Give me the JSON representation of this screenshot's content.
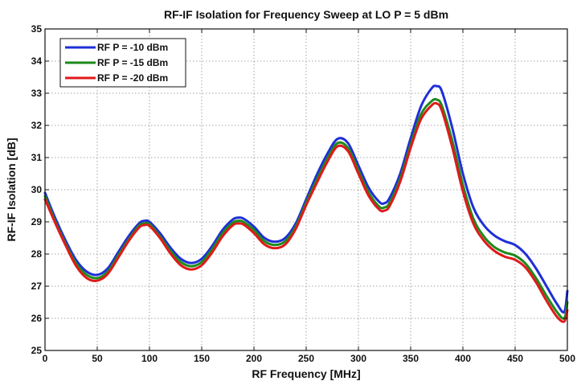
{
  "chart_data": {
    "type": "line",
    "title": "RF-IF Isolation for Frequency Sweep at LO P = 5 dBm",
    "xlabel": "RF Frequency [MHz]",
    "ylabel": "RF-IF Isolation [dB]",
    "xlim": [
      0,
      500
    ],
    "ylim": [
      25,
      35
    ],
    "xticks": [
      0,
      50,
      100,
      150,
      200,
      250,
      300,
      350,
      400,
      450,
      500
    ],
    "yticks": [
      25,
      26,
      27,
      28,
      29,
      30,
      31,
      32,
      33,
      34,
      35
    ],
    "grid": true,
    "legend_position": "top-left",
    "x": [
      0,
      10,
      20,
      30,
      40,
      50,
      60,
      70,
      80,
      90,
      95,
      100,
      110,
      120,
      130,
      140,
      150,
      160,
      170,
      180,
      185,
      190,
      200,
      210,
      220,
      230,
      240,
      250,
      260,
      270,
      280,
      290,
      300,
      310,
      320,
      325,
      330,
      340,
      350,
      360,
      370,
      375,
      380,
      390,
      400,
      410,
      420,
      430,
      440,
      450,
      460,
      470,
      480,
      490,
      497,
      500
    ],
    "series": [
      {
        "name": "RF P = -10 dBm",
        "color": "#1f2fd6",
        "values": [
          29.9,
          29.1,
          28.4,
          27.8,
          27.45,
          27.35,
          27.55,
          28.05,
          28.55,
          28.95,
          29.03,
          29.0,
          28.65,
          28.2,
          27.85,
          27.72,
          27.85,
          28.25,
          28.75,
          29.08,
          29.13,
          29.1,
          28.85,
          28.5,
          28.38,
          28.5,
          28.95,
          29.7,
          30.45,
          31.1,
          31.58,
          31.45,
          30.75,
          30.05,
          29.62,
          29.58,
          29.75,
          30.5,
          31.6,
          32.6,
          33.15,
          33.22,
          33.05,
          31.9,
          30.5,
          29.45,
          28.9,
          28.58,
          28.4,
          28.28,
          28.0,
          27.55,
          27.0,
          26.45,
          26.2,
          26.85
        ]
      },
      {
        "name": "RF P = -15 dBm",
        "color": "#1d8a1d",
        "values": [
          29.8,
          29.0,
          28.3,
          27.7,
          27.35,
          27.25,
          27.45,
          27.95,
          28.45,
          28.88,
          28.95,
          28.93,
          28.55,
          28.1,
          27.75,
          27.62,
          27.75,
          28.15,
          28.65,
          28.98,
          29.03,
          29.0,
          28.75,
          28.4,
          28.28,
          28.4,
          28.85,
          29.6,
          30.3,
          30.95,
          31.45,
          31.3,
          30.6,
          29.9,
          29.47,
          29.45,
          29.6,
          30.35,
          31.4,
          32.35,
          32.75,
          32.8,
          32.6,
          31.5,
          30.15,
          29.1,
          28.55,
          28.22,
          28.05,
          27.95,
          27.7,
          27.25,
          26.7,
          26.2,
          26.0,
          26.5
        ]
      },
      {
        "name": "RF P = -20 dBm",
        "color": "#e01a1a",
        "values": [
          29.7,
          28.95,
          28.25,
          27.62,
          27.25,
          27.17,
          27.38,
          27.88,
          28.4,
          28.82,
          28.9,
          28.87,
          28.5,
          28.02,
          27.65,
          27.52,
          27.65,
          28.05,
          28.55,
          28.9,
          28.95,
          28.92,
          28.65,
          28.3,
          28.18,
          28.3,
          28.78,
          29.52,
          30.2,
          30.85,
          31.35,
          31.2,
          30.5,
          29.8,
          29.38,
          29.35,
          29.5,
          30.25,
          31.3,
          32.2,
          32.62,
          32.68,
          32.45,
          31.3,
          29.95,
          28.95,
          28.42,
          28.1,
          27.92,
          27.82,
          27.58,
          27.12,
          26.55,
          26.05,
          25.9,
          26.25
        ]
      }
    ]
  }
}
